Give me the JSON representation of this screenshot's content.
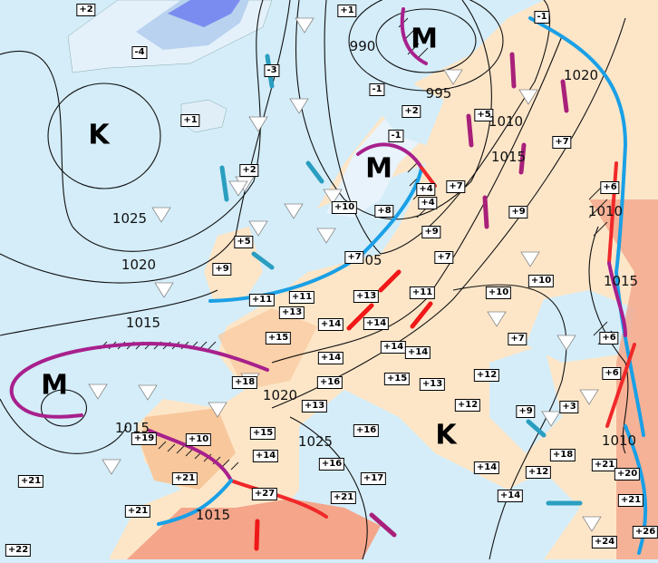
{
  "map": {
    "colors": {
      "sea": "#d4edf9",
      "land_mild": "#fde6c8",
      "land_warm": "#f8c89c",
      "land_hot": "#f4a58a",
      "ice_cold": "#7a8cf0",
      "cold_front": "#1aa0e6",
      "warm_front": "#f0282a",
      "occluded_front": "#a8208c",
      "isobar": "#111111",
      "wind_cold": "#2a9ec0",
      "wind_mild": "#a8207a",
      "wind_warm": "#f01818"
    },
    "pressure_centers": [
      {
        "label": "K",
        "type": "high"
      },
      {
        "label": "M",
        "type": "low"
      },
      {
        "label": "M",
        "type": "low"
      },
      {
        "label": "M",
        "type": "low"
      },
      {
        "label": "K",
        "type": "high"
      }
    ],
    "isobar_labels": [
      "990",
      "995",
      "1010",
      "1015",
      "1020",
      "1025",
      "1020",
      "1015",
      "1015",
      "1020",
      "1025",
      "1015",
      "1010",
      "1010",
      "1015",
      "05"
    ],
    "temperatures": [
      "+2",
      "-4",
      "+1",
      "-3",
      "+2",
      "+5",
      "+9",
      "+1",
      "-1",
      "+2",
      "-1",
      "+10",
      "+8",
      "+4",
      "+4",
      "+7",
      "+9",
      "+7",
      "+7",
      "+5",
      "+7",
      "+9",
      "-1",
      "+6",
      "+10",
      "+10",
      "+11",
      "+11",
      "+13",
      "+13",
      "+11",
      "+15",
      "+14",
      "+14",
      "+14",
      "+14",
      "+14",
      "+7",
      "+6",
      "+6",
      "+18",
      "+16",
      "+15",
      "+13",
      "+12",
      "+12",
      "+13",
      "+16",
      "+9",
      "+3",
      "+19",
      "+10",
      "+15",
      "+14",
      "+17",
      "+16",
      "+14",
      "+18",
      "+12",
      "+21",
      "+20",
      "+21",
      "+27",
      "+21",
      "+14",
      "+21",
      "+21",
      "+21",
      "+24",
      "+26",
      "+22"
    ],
    "symbols": [
      "shower-icon",
      "snow-icon",
      "rain-icon",
      "thunder-hatch",
      "wind-arrow-icon"
    ]
  }
}
